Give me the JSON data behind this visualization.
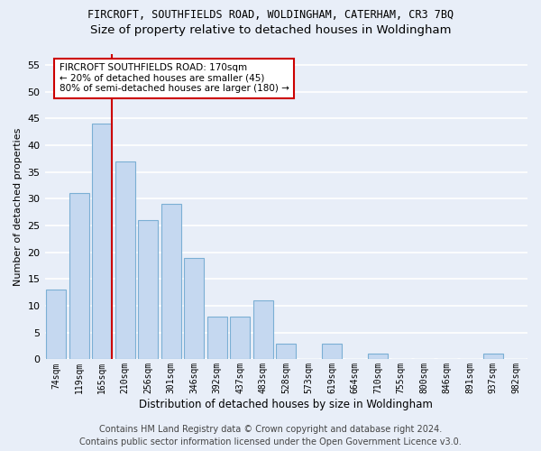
{
  "title1": "FIRCROFT, SOUTHFIELDS ROAD, WOLDINGHAM, CATERHAM, CR3 7BQ",
  "title2": "Size of property relative to detached houses in Woldingham",
  "xlabel": "Distribution of detached houses by size in Woldingham",
  "ylabel": "Number of detached properties",
  "categories": [
    "74sqm",
    "119sqm",
    "165sqm",
    "210sqm",
    "256sqm",
    "301sqm",
    "346sqm",
    "392sqm",
    "437sqm",
    "483sqm",
    "528sqm",
    "573sqm",
    "619sqm",
    "664sqm",
    "710sqm",
    "755sqm",
    "800sqm",
    "846sqm",
    "891sqm",
    "937sqm",
    "982sqm"
  ],
  "values": [
    13,
    31,
    44,
    37,
    26,
    29,
    19,
    8,
    8,
    11,
    3,
    0,
    3,
    0,
    1,
    0,
    0,
    0,
    0,
    1,
    0
  ],
  "bar_color": "#c5d8f0",
  "bar_edge_color": "#7bafd4",
  "vline_x_index": 2,
  "vline_color": "#cc0000",
  "annotation_text": "FIRCROFT SOUTHFIELDS ROAD: 170sqm\n← 20% of detached houses are smaller (45)\n80% of semi-detached houses are larger (180) →",
  "annotation_box_color": "#ffffff",
  "annotation_box_edge_color": "#cc0000",
  "ylim": [
    0,
    57
  ],
  "yticks": [
    0,
    5,
    10,
    15,
    20,
    25,
    30,
    35,
    40,
    45,
    50,
    55
  ],
  "footer1": "Contains HM Land Registry data © Crown copyright and database right 2024.",
  "footer2": "Contains public sector information licensed under the Open Government Licence v3.0.",
  "bg_color": "#e8eef8",
  "grid_color": "#ffffff",
  "title1_fontsize": 8.5,
  "title2_fontsize": 9.5,
  "footer_fontsize": 7.0,
  "ylabel_fontsize": 8.0,
  "xlabel_fontsize": 8.5,
  "annotation_fontsize": 7.5,
  "ytick_fontsize": 8.0,
  "xtick_fontsize": 7.0
}
